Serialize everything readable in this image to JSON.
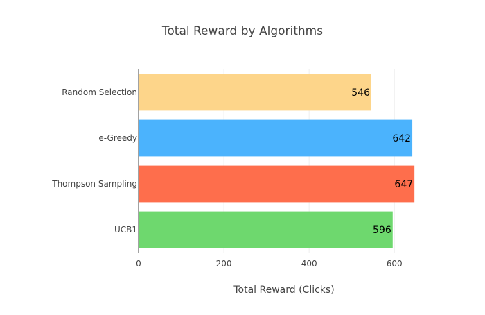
{
  "chart_data": {
    "type": "bar",
    "orientation": "horizontal",
    "title": "Total Reward by Algorithms",
    "xlabel": "Total Reward (Clicks)",
    "ylabel": "",
    "xlim": [
      0,
      650
    ],
    "x_ticks": [
      0,
      200,
      400,
      600
    ],
    "grid": true,
    "legend": "none",
    "bars": [
      {
        "category": "Random Selection",
        "value": 546,
        "color": "#fdd58a"
      },
      {
        "category": "e-Greedy",
        "value": 642,
        "color": "#4bb3fd"
      },
      {
        "category": "Thompson Sampling",
        "value": 647,
        "color": "#fe6e4c"
      },
      {
        "category": "UCB1",
        "value": 596,
        "color": "#6ed86e"
      }
    ]
  }
}
